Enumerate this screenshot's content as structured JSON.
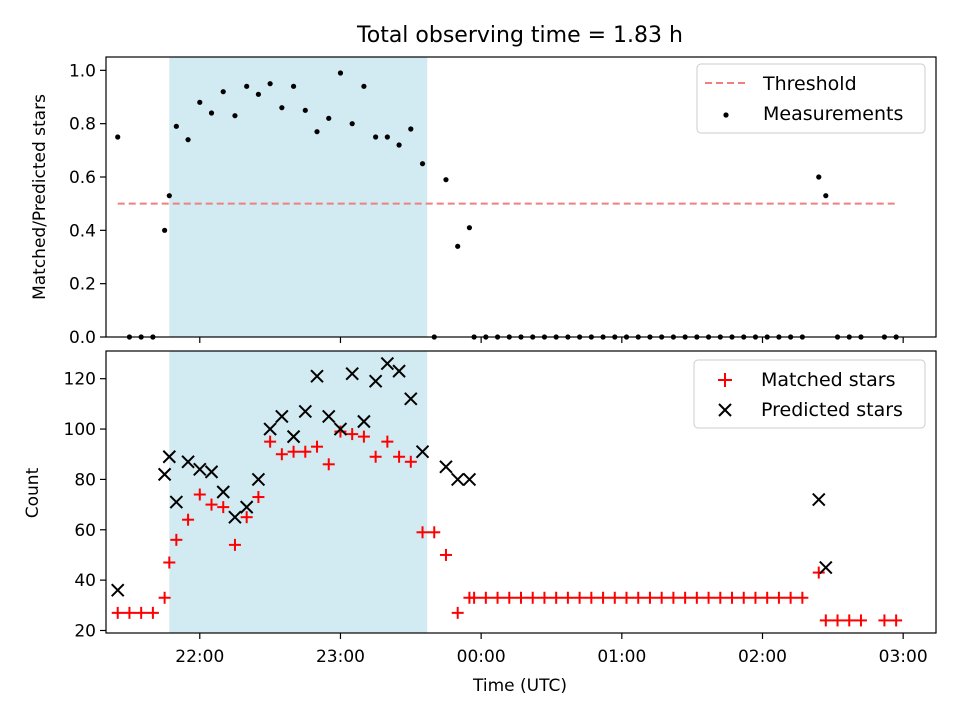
{
  "figure": {
    "title": "Total observing time = 1.83 h"
  },
  "colors": {
    "shade": "#add8e6",
    "threshold": "#f08080",
    "measurement": "#000000",
    "matched": "#ff0000",
    "predicted": "#000000"
  },
  "chart_data": [
    {
      "type": "scatter",
      "panel": "top",
      "title": "Total observing time = 1.83 h",
      "ylabel": "Matched/Predicted stars",
      "xlabel": "",
      "xlim": [
        "21:20",
        "03:14"
      ],
      "ylim": [
        0,
        1.05
      ],
      "yticks": [
        0.0,
        0.2,
        0.4,
        0.6,
        0.8,
        1.0
      ],
      "ytick_labels": [
        "0.0",
        "0.2",
        "0.4",
        "0.6",
        "0.8",
        "1.0"
      ],
      "xticks": [
        "22:00",
        "23:00",
        "00:00",
        "01:00",
        "02:00",
        "03:00"
      ],
      "shaded_interval": [
        "21:47",
        "23:37"
      ],
      "threshold": {
        "name": "Threshold",
        "value": 0.5,
        "x_range": [
          "21:25",
          "02:57"
        ]
      },
      "legend_position": "upper right",
      "series": [
        {
          "name": "Measurements",
          "x": [
            "21:25",
            "21:30",
            "21:35",
            "21:40",
            "21:45",
            "21:47",
            "21:50",
            "21:55",
            "22:00",
            "22:05",
            "22:10",
            "22:15",
            "22:20",
            "22:25",
            "22:30",
            "22:35",
            "22:40",
            "22:45",
            "22:50",
            "22:55",
            "23:00",
            "23:05",
            "23:10",
            "23:15",
            "23:20",
            "23:25",
            "23:30",
            "23:35",
            "23:40",
            "23:45",
            "23:50",
            "23:55",
            "23:57",
            "00:02",
            "00:07",
            "00:12",
            "00:17",
            "00:22",
            "00:27",
            "00:32",
            "00:37",
            "00:42",
            "00:47",
            "00:52",
            "00:57",
            "01:02",
            "01:07",
            "01:12",
            "01:17",
            "01:22",
            "01:27",
            "01:32",
            "01:37",
            "01:42",
            "01:47",
            "01:52",
            "01:57",
            "02:02",
            "02:07",
            "02:12",
            "02:17",
            "02:24",
            "02:27",
            "02:32",
            "02:37",
            "02:42",
            "02:52",
            "02:57"
          ],
          "y": [
            0.75,
            0,
            0,
            0,
            0.4,
            0.53,
            0.79,
            0.74,
            0.88,
            0.84,
            0.92,
            0.83,
            0.94,
            0.91,
            0.95,
            0.86,
            0.94,
            0.85,
            0.77,
            0.82,
            0.99,
            0.8,
            0.94,
            0.75,
            0.75,
            0.72,
            0.78,
            0.65,
            0,
            0.59,
            0.34,
            0.41,
            0,
            0,
            0,
            0,
            0,
            0,
            0,
            0,
            0,
            0,
            0,
            0,
            0,
            0,
            0,
            0,
            0,
            0,
            0,
            0,
            0,
            0,
            0,
            0,
            0,
            0,
            0,
            0,
            0,
            0.6,
            0.53,
            0,
            0,
            0,
            0,
            0
          ]
        }
      ]
    },
    {
      "type": "scatter",
      "panel": "bottom",
      "ylabel": "Count",
      "xlabel": "Time (UTC)",
      "xlim": [
        "21:20",
        "03:14"
      ],
      "ylim": [
        19,
        131
      ],
      "yticks": [
        20,
        40,
        60,
        80,
        100,
        120
      ],
      "ytick_labels": [
        "20",
        "40",
        "60",
        "80",
        "100",
        "120"
      ],
      "xticks": [
        "22:00",
        "23:00",
        "00:00",
        "01:00",
        "02:00",
        "03:00"
      ],
      "xtick_labels": [
        "22:00",
        "23:00",
        "00:00",
        "01:00",
        "02:00",
        "03:00"
      ],
      "shaded_interval": [
        "21:47",
        "23:37"
      ],
      "legend_position": "upper right",
      "series": [
        {
          "name": "Matched stars",
          "marker": "+",
          "x": [
            "21:25",
            "21:30",
            "21:35",
            "21:40",
            "21:45",
            "21:47",
            "21:50",
            "21:55",
            "22:00",
            "22:05",
            "22:10",
            "22:15",
            "22:20",
            "22:25",
            "22:30",
            "22:35",
            "22:40",
            "22:45",
            "22:50",
            "22:55",
            "23:00",
            "23:05",
            "23:10",
            "23:15",
            "23:20",
            "23:25",
            "23:30",
            "23:35",
            "23:40",
            "23:45",
            "23:50",
            "23:55",
            "23:57",
            "00:02",
            "00:07",
            "00:12",
            "00:17",
            "00:22",
            "00:27",
            "00:32",
            "00:37",
            "00:42",
            "00:47",
            "00:52",
            "00:57",
            "01:02",
            "01:07",
            "01:12",
            "01:17",
            "01:22",
            "01:27",
            "01:32",
            "01:37",
            "01:42",
            "01:47",
            "01:52",
            "01:57",
            "02:02",
            "02:07",
            "02:12",
            "02:17",
            "02:24",
            "02:27",
            "02:32",
            "02:37",
            "02:42",
            "02:52",
            "02:57"
          ],
          "y": [
            27,
            27,
            27,
            27,
            33,
            47,
            56,
            64,
            74,
            70,
            69,
            54,
            65,
            73,
            95,
            90,
            91,
            91,
            93,
            86,
            99,
            98,
            97,
            89,
            95,
            89,
            87,
            59,
            59,
            50,
            27,
            33,
            33,
            33,
            33,
            33,
            33,
            33,
            33,
            33,
            33,
            33,
            33,
            33,
            33,
            33,
            33,
            33,
            33,
            33,
            33,
            33,
            33,
            33,
            33,
            33,
            33,
            33,
            33,
            33,
            33,
            43,
            24,
            24,
            24,
            24,
            24,
            24
          ]
        },
        {
          "name": "Predicted stars",
          "marker": "x",
          "x": [
            "21:25",
            "21:45",
            "21:47",
            "21:50",
            "21:55",
            "22:00",
            "22:05",
            "22:10",
            "22:15",
            "22:20",
            "22:25",
            "22:30",
            "22:35",
            "22:40",
            "22:45",
            "22:50",
            "22:55",
            "23:00",
            "23:05",
            "23:10",
            "23:15",
            "23:20",
            "23:25",
            "23:30",
            "23:35",
            "23:45",
            "23:50",
            "23:55",
            "02:24",
            "02:27"
          ],
          "y": [
            36,
            82,
            89,
            71,
            87,
            84,
            83,
            75,
            65,
            69,
            80,
            100,
            105,
            97,
            107,
            121,
            105,
            100,
            122,
            103,
            119,
            126,
            123,
            112,
            91,
            85,
            80,
            80,
            72,
            45
          ]
        }
      ]
    }
  ]
}
